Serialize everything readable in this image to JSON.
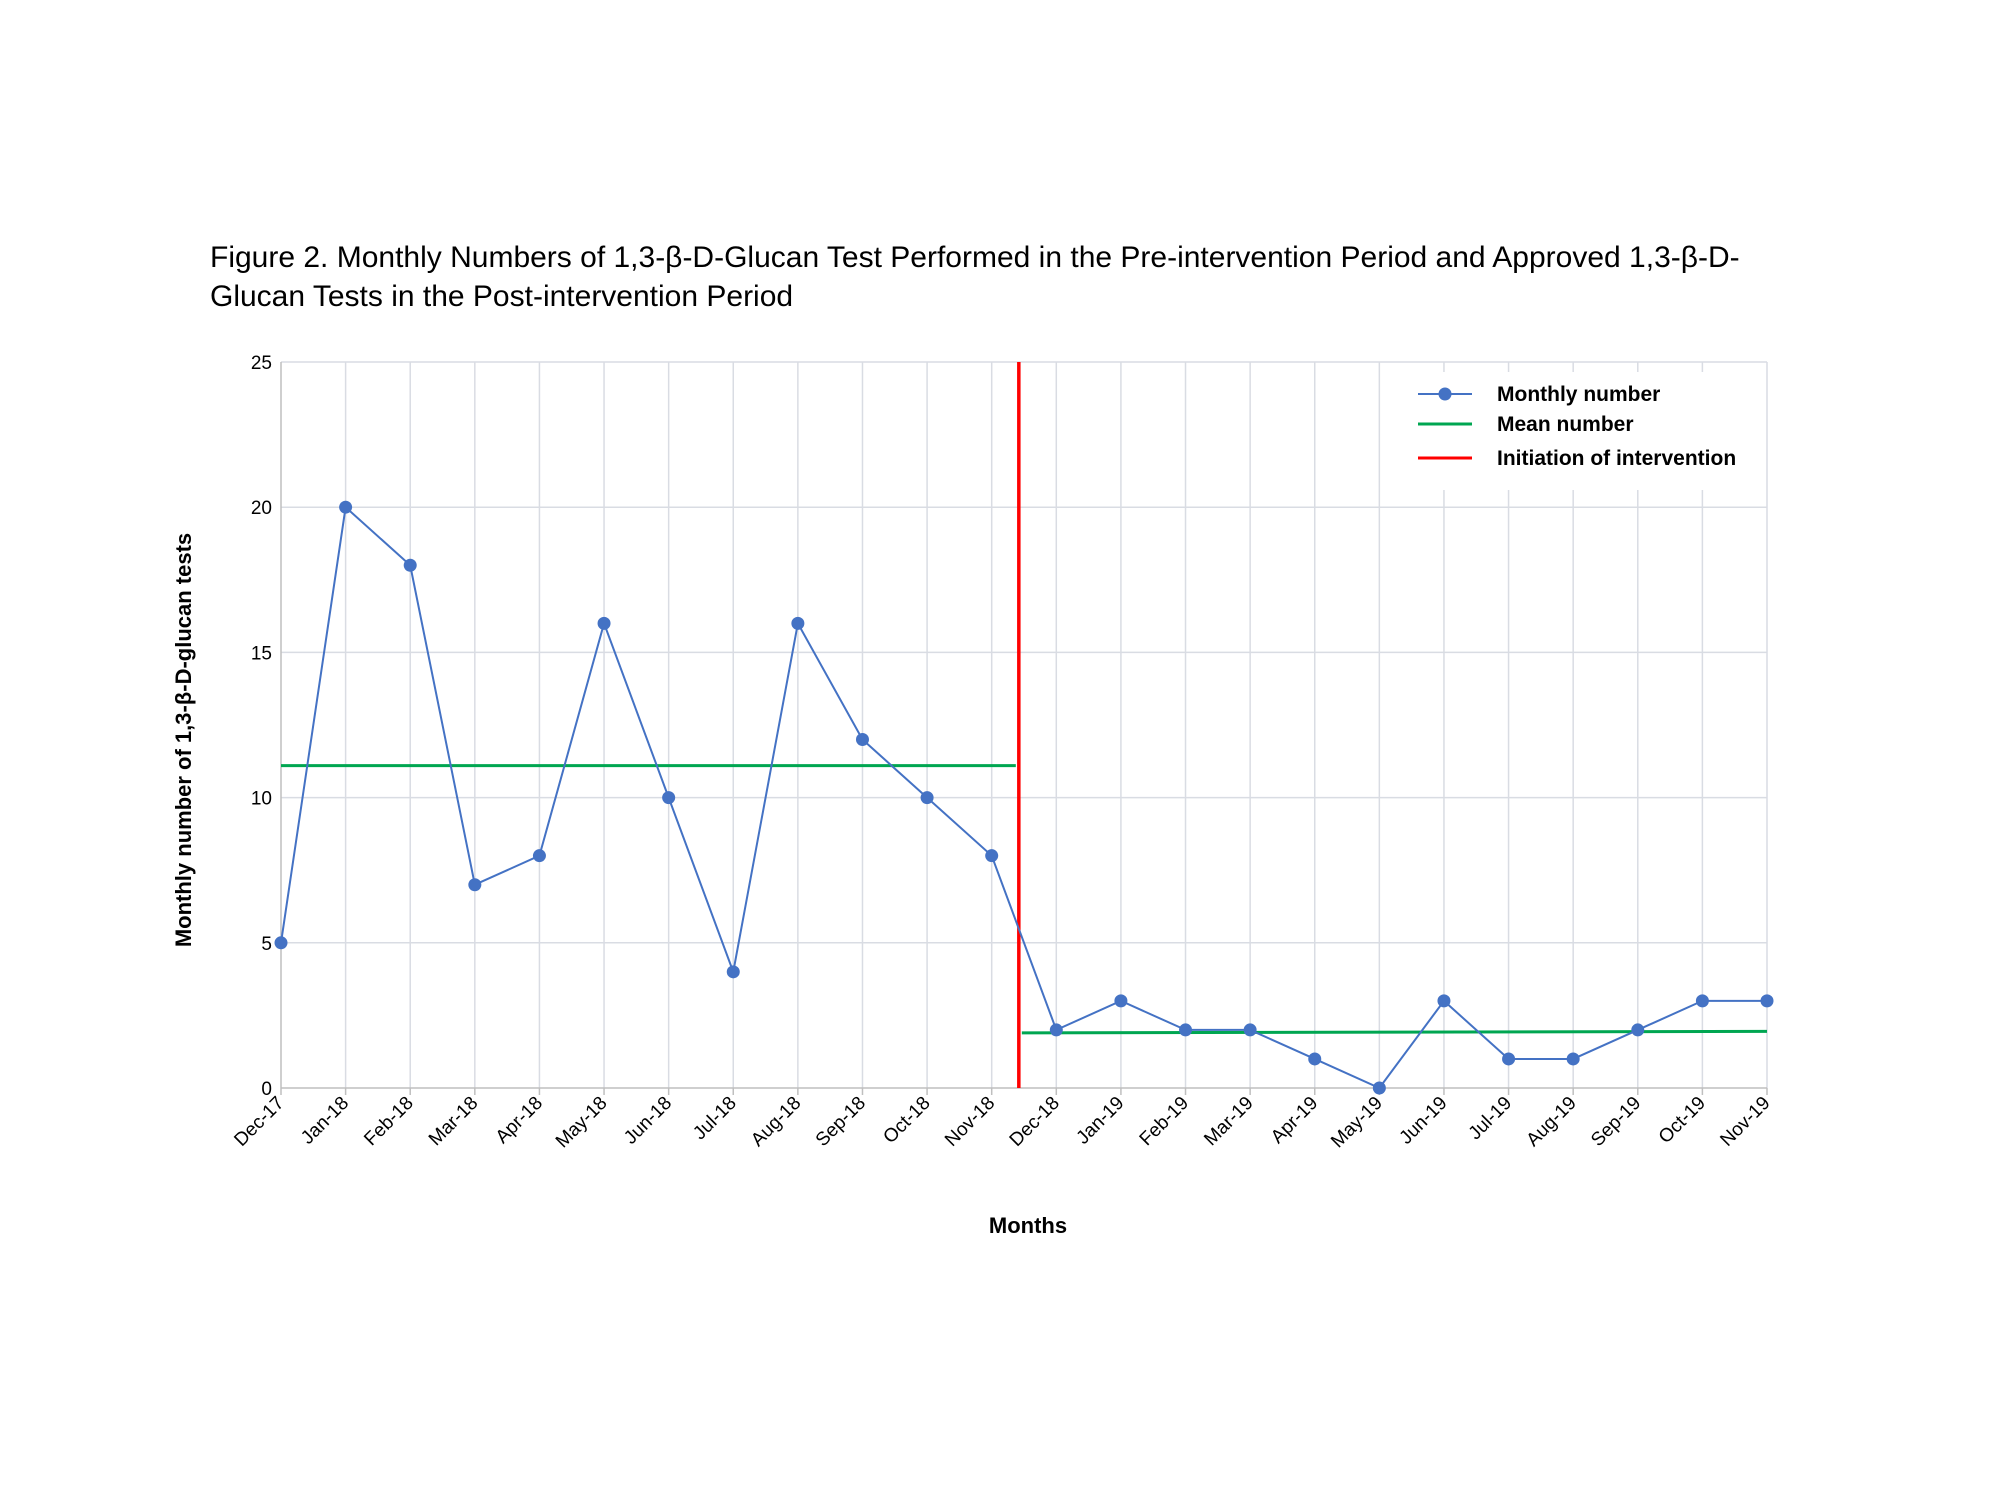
{
  "figure": {
    "title": "Figure 2. Monthly Numbers of 1,3-β-D-Glucan Test Performed in the Pre-intervention Period and Approved 1,3-β-D-Glucan Tests in the Post-intervention Period"
  },
  "chart_data": {
    "type": "line",
    "title": "Figure 2. Monthly Numbers of 1,3-β-D-Glucan Test Performed in the Pre-intervention Period and Approved 1,3-β-D-Glucan Tests in the Post-intervention Period",
    "xlabel": "Months",
    "ylabel": "Monthly  number of 1,3-β-D-glucan tests",
    "ylim": [
      0,
      25
    ],
    "yticks": [
      0,
      5,
      10,
      15,
      20,
      25
    ],
    "grid": true,
    "legend_position": "top-right",
    "categories": [
      "Dec-17",
      "Jan-18",
      "Feb-18",
      "Mar-18",
      "Apr-18",
      "May-18",
      "Jun-18",
      "Jul-18",
      "Aug-18",
      "Sep-18",
      "Oct-18",
      "Nov-18",
      "Dec-18",
      "Jan-19",
      "Feb-19",
      "Mar-19",
      "Apr-19",
      "May-19",
      "Jun-19",
      "Jul-19",
      "Aug-19",
      "Sep-19",
      "Oct-19",
      "Nov-19"
    ],
    "series": [
      {
        "name": "Monthly number",
        "color": "#4472C4",
        "marker": "circle",
        "values": [
          5,
          20,
          18,
          7,
          8,
          16,
          10,
          4,
          16,
          12,
          10,
          8,
          2,
          3,
          2,
          2,
          1,
          0,
          3,
          1,
          1,
          2,
          3,
          3
        ]
      },
      {
        "name": "Mean number",
        "color": "#00A651",
        "segments": [
          {
            "from": "Dec-17",
            "to": "Nov-18",
            "value": 11.1,
            "extends_to_intervention": true
          },
          {
            "from": "Dec-18",
            "to": "Nov-19",
            "value_start": 1.9,
            "value_end": 1.95,
            "extends_from_intervention": true
          }
        ]
      },
      {
        "name": "Initiation of intervention",
        "color": "#FF0000",
        "type": "vertical-line",
        "between": [
          "Nov-18",
          "Dec-18"
        ],
        "position": 11.42
      }
    ]
  }
}
